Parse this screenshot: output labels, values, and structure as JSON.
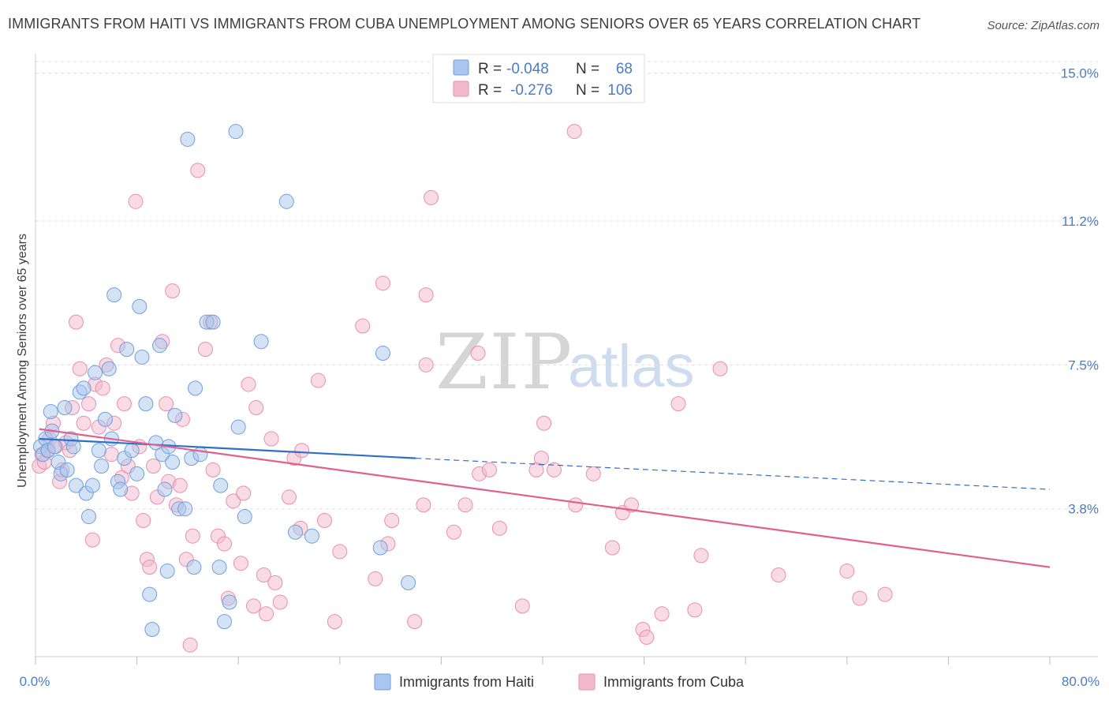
{
  "title": "IMMIGRANTS FROM HAITI VS IMMIGRANTS FROM CUBA UNEMPLOYMENT AMONG SENIORS OVER 65 YEARS CORRELATION CHART",
  "source": "Source: ZipAtlas.com",
  "watermark": {
    "zip": "ZIP",
    "atlas": "atlas"
  },
  "colors": {
    "haiti_fill": "#a9c6ee",
    "haiti_stroke": "#6f9fdd",
    "haiti_line": "#2f6fc7",
    "cuba_fill": "#f4b8cc",
    "cuba_stroke": "#e88fad",
    "cuba_line": "#e0608f",
    "tick_text": "#4a7cc7",
    "grid": "#dddddd"
  },
  "legend_top": {
    "rows": [
      {
        "series": "haiti",
        "r_label": "R =",
        "r_value": "-0.048",
        "n_label": "N =",
        "n_value": "68"
      },
      {
        "series": "cuba",
        "r_label": "R =",
        "r_value": "-0.276",
        "n_label": "N =",
        "n_value": "106"
      }
    ]
  },
  "chart_data": {
    "type": "scatter",
    "title": "IMMIGRANTS FROM HAITI VS IMMIGRANTS FROM CUBA UNEMPLOYMENT AMONG SENIORS OVER 65 YEARS CORRELATION CHART",
    "xlabel": "",
    "ylabel": "Unemployment Among Seniors over 65 years",
    "xlim": [
      0,
      80
    ],
    "ylim": [
      0,
      15.5
    ],
    "y_ticks": [
      3.8,
      7.5,
      11.2,
      15.0
    ],
    "y_tick_labels": [
      "3.8%",
      "7.5%",
      "11.2%",
      "15.0%"
    ],
    "x_tick_labels": [
      "0.0%",
      "80.0%"
    ],
    "legend_position": "bottom-center",
    "series": [
      {
        "name": "Immigrants from Haiti",
        "key": "haiti",
        "R": -0.048,
        "N": 68,
        "trend": {
          "x0": 0.3,
          "y0": 5.6,
          "x1": 30,
          "y1": 5.1,
          "solid_to": 30,
          "dashed_to": 80,
          "y_end": 4.3
        },
        "points": [
          [
            0.4,
            5.4
          ],
          [
            0.6,
            5.2
          ],
          [
            0.8,
            5.6
          ],
          [
            1.0,
            5.3
          ],
          [
            1.2,
            6.3
          ],
          [
            1.3,
            5.8
          ],
          [
            1.5,
            5.4
          ],
          [
            1.8,
            5.0
          ],
          [
            2.0,
            4.7
          ],
          [
            2.3,
            6.4
          ],
          [
            2.5,
            4.8
          ],
          [
            2.8,
            5.6
          ],
          [
            3.0,
            5.4
          ],
          [
            3.2,
            4.4
          ],
          [
            3.5,
            6.8
          ],
          [
            3.8,
            6.9
          ],
          [
            4.0,
            4.2
          ],
          [
            4.2,
            3.6
          ],
          [
            4.5,
            4.4
          ],
          [
            4.7,
            7.3
          ],
          [
            5.0,
            5.3
          ],
          [
            5.2,
            4.9
          ],
          [
            5.5,
            6.1
          ],
          [
            5.8,
            7.4
          ],
          [
            6.0,
            5.6
          ],
          [
            6.2,
            9.3
          ],
          [
            6.5,
            4.5
          ],
          [
            6.7,
            4.3
          ],
          [
            7.0,
            5.1
          ],
          [
            7.2,
            7.9
          ],
          [
            7.6,
            5.3
          ],
          [
            8.0,
            4.7
          ],
          [
            8.2,
            9.0
          ],
          [
            8.4,
            7.7
          ],
          [
            8.7,
            6.5
          ],
          [
            9.0,
            1.6
          ],
          [
            9.2,
            0.7
          ],
          [
            9.5,
            5.5
          ],
          [
            9.8,
            8.0
          ],
          [
            10.0,
            5.2
          ],
          [
            10.2,
            4.3
          ],
          [
            10.5,
            5.4
          ],
          [
            10.8,
            5.0
          ],
          [
            11.0,
            6.2
          ],
          [
            11.3,
            3.8
          ],
          [
            11.8,
            3.8
          ],
          [
            12.0,
            13.3
          ],
          [
            12.3,
            5.1
          ],
          [
            12.5,
            2.3
          ],
          [
            10.4,
            2.2
          ],
          [
            12.6,
            6.9
          ],
          [
            13.0,
            5.2
          ],
          [
            13.5,
            8.6
          ],
          [
            14.0,
            8.6
          ],
          [
            14.5,
            2.3
          ],
          [
            14.6,
            4.4
          ],
          [
            14.9,
            0.9
          ],
          [
            15.3,
            1.4
          ],
          [
            15.8,
            13.5
          ],
          [
            16.0,
            5.9
          ],
          [
            16.5,
            3.6
          ],
          [
            17.8,
            8.1
          ],
          [
            19.8,
            11.7
          ],
          [
            20.5,
            3.2
          ],
          [
            21.8,
            3.1
          ],
          [
            27.4,
            7.8
          ],
          [
            27.2,
            2.8
          ],
          [
            29.4,
            1.9
          ]
        ]
      },
      {
        "name": "Immigrants from Cuba",
        "key": "cuba",
        "R": -0.276,
        "N": 106,
        "trend": {
          "x0": 0.3,
          "y0": 5.85,
          "x1": 80,
          "y1": 2.3
        },
        "points": [
          [
            0.3,
            4.9
          ],
          [
            0.5,
            5.2
          ],
          [
            0.7,
            5.0
          ],
          [
            0.9,
            5.3
          ],
          [
            1.1,
            5.6
          ],
          [
            1.4,
            6.0
          ],
          [
            1.6,
            5.4
          ],
          [
            1.9,
            4.5
          ],
          [
            2.1,
            4.8
          ],
          [
            2.4,
            5.5
          ],
          [
            2.7,
            5.3
          ],
          [
            2.9,
            6.4
          ],
          [
            3.2,
            8.6
          ],
          [
            3.5,
            7.4
          ],
          [
            3.8,
            6.0
          ],
          [
            4.2,
            6.5
          ],
          [
            4.5,
            3.0
          ],
          [
            4.7,
            7.0
          ],
          [
            5.0,
            5.9
          ],
          [
            5.3,
            6.9
          ],
          [
            5.6,
            7.5
          ],
          [
            6.0,
            5.2
          ],
          [
            6.2,
            6.0
          ],
          [
            6.5,
            8.0
          ],
          [
            6.8,
            4.6
          ],
          [
            7.0,
            6.5
          ],
          [
            7.3,
            4.9
          ],
          [
            7.6,
            4.2
          ],
          [
            7.9,
            11.7
          ],
          [
            8.2,
            5.4
          ],
          [
            8.5,
            3.5
          ],
          [
            8.8,
            2.5
          ],
          [
            9.0,
            2.3
          ],
          [
            9.3,
            4.9
          ],
          [
            9.6,
            4.1
          ],
          [
            10.0,
            8.1
          ],
          [
            10.3,
            6.5
          ],
          [
            10.5,
            4.5
          ],
          [
            10.8,
            9.4
          ],
          [
            11.1,
            3.9
          ],
          [
            11.4,
            4.4
          ],
          [
            11.6,
            6.1
          ],
          [
            11.9,
            2.5
          ],
          [
            12.2,
            0.3
          ],
          [
            12.4,
            3.1
          ],
          [
            12.8,
            12.5
          ],
          [
            13.4,
            7.9
          ],
          [
            13.8,
            8.6
          ],
          [
            14.0,
            4.8
          ],
          [
            14.4,
            3.1
          ],
          [
            14.9,
            2.9
          ],
          [
            15.2,
            1.5
          ],
          [
            15.6,
            4.0
          ],
          [
            16.2,
            2.4
          ],
          [
            16.4,
            4.2
          ],
          [
            16.8,
            7.0
          ],
          [
            17.2,
            1.3
          ],
          [
            17.4,
            6.4
          ],
          [
            18.0,
            2.1
          ],
          [
            18.2,
            1.1
          ],
          [
            18.6,
            5.6
          ],
          [
            18.9,
            1.9
          ],
          [
            19.3,
            1.4
          ],
          [
            20.0,
            4.1
          ],
          [
            20.4,
            5.1
          ],
          [
            20.9,
            3.3
          ],
          [
            21.0,
            5.3
          ],
          [
            22.3,
            7.1
          ],
          [
            22.8,
            3.5
          ],
          [
            23.6,
            0.9
          ],
          [
            24.0,
            2.7
          ],
          [
            25.8,
            8.5
          ],
          [
            26.8,
            2.0
          ],
          [
            27.4,
            9.6
          ],
          [
            27.8,
            2.9
          ],
          [
            28.1,
            3.5
          ],
          [
            29.9,
            0.9
          ],
          [
            30.6,
            3.9
          ],
          [
            30.8,
            7.5
          ],
          [
            30.8,
            9.3
          ],
          [
            31.2,
            11.8
          ],
          [
            33.0,
            3.2
          ],
          [
            33.9,
            3.9
          ],
          [
            34.9,
            7.8
          ],
          [
            35.0,
            4.7
          ],
          [
            35.8,
            4.8
          ],
          [
            36.6,
            3.3
          ],
          [
            38.4,
            1.3
          ],
          [
            39.5,
            4.8
          ],
          [
            39.9,
            5.1
          ],
          [
            40.1,
            6.0
          ],
          [
            40.9,
            4.8
          ],
          [
            42.5,
            13.5
          ],
          [
            42.6,
            3.9
          ],
          [
            44.0,
            4.7
          ],
          [
            45.5,
            2.8
          ],
          [
            46.3,
            3.7
          ],
          [
            47.0,
            3.9
          ],
          [
            47.9,
            0.7
          ],
          [
            48.2,
            0.5
          ],
          [
            49.4,
            1.1
          ],
          [
            50.7,
            6.5
          ],
          [
            52.0,
            1.2
          ],
          [
            52.5,
            2.6
          ],
          [
            54.0,
            7.4
          ],
          [
            58.6,
            2.1
          ],
          [
            64.0,
            2.2
          ],
          [
            65.0,
            1.5
          ],
          [
            67.0,
            1.6
          ]
        ]
      }
    ]
  },
  "legend_bottom": {
    "items": [
      {
        "series": "haiti",
        "label": "Immigrants from Haiti"
      },
      {
        "series": "cuba",
        "label": "Immigrants from Cuba"
      }
    ]
  }
}
